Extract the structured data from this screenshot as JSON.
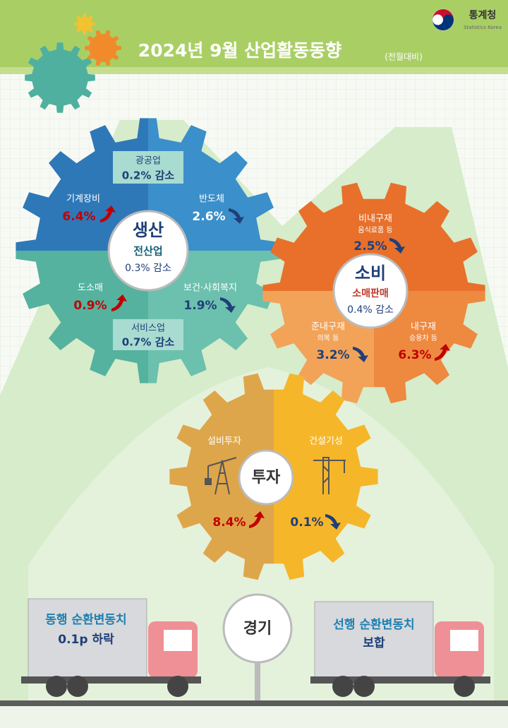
{
  "header": {
    "title": "2024년 9월 산업활동동향",
    "note": "(전월대비)",
    "logo": "통계청",
    "logo_sub": "Statistics Korea"
  },
  "production": {
    "title": "생산",
    "subtitle": "전산업",
    "summary": "0.3% 감소",
    "items": [
      {
        "label": "광공업",
        "value": "0.2% 감소"
      },
      {
        "label": "기계장비",
        "value": "6.4%",
        "direction": "up"
      },
      {
        "label": "반도체",
        "value": "2.6%",
        "direction": "down"
      },
      {
        "label": "도소매",
        "value": "0.9%",
        "direction": "up"
      },
      {
        "label": "보건·사회복지",
        "value": "1.9%",
        "direction": "down"
      },
      {
        "label": "서비스업",
        "value": "0.7% 감소"
      }
    ]
  },
  "consumption": {
    "title": "소비",
    "subtitle": "소매판매",
    "summary": "0.4% 감소",
    "items": [
      {
        "label": "비내구재",
        "sub": "음식료품 등",
        "value": "2.5%",
        "direction": "down"
      },
      {
        "label": "준내구재",
        "sub": "의복 등",
        "value": "3.2%",
        "direction": "down"
      },
      {
        "label": "내구재",
        "sub": "승용차 등",
        "value": "6.3%",
        "direction": "up"
      }
    ]
  },
  "investment": {
    "title": "투자",
    "items": [
      {
        "label": "설비투자",
        "value": "8.4%",
        "direction": "up"
      },
      {
        "label": "건설기성",
        "value": "0.1%",
        "direction": "down"
      }
    ]
  },
  "economy": {
    "title": "경기",
    "items": [
      {
        "label": "동행 순환변동치",
        "value": "0.1p 하락"
      },
      {
        "label": "선행 순환변동치",
        "value": "보합"
      }
    ]
  }
}
